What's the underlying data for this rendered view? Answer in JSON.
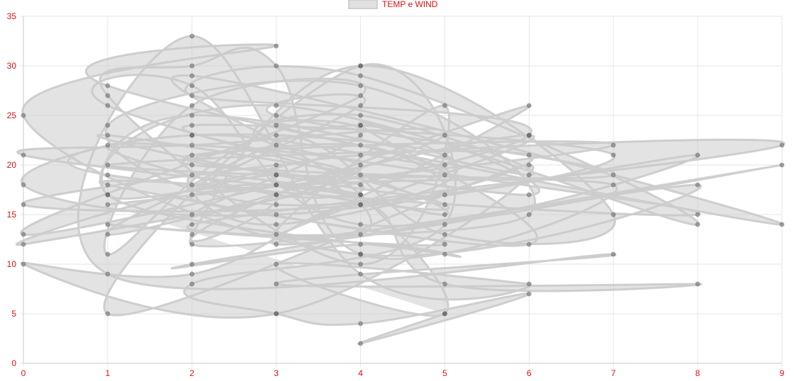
{
  "chart_data": {
    "type": "line",
    "title": "",
    "xlabel": "",
    "ylabel": "",
    "xlim": [
      0,
      9
    ],
    "ylim": [
      0,
      35
    ],
    "x_ticks": [
      "0",
      "1",
      "2",
      "3",
      "4",
      "5",
      "6",
      "7",
      "8",
      "9"
    ],
    "y_ticks": [
      "0",
      "5",
      "10",
      "15",
      "20",
      "25",
      "30",
      "35"
    ],
    "grid": true,
    "legend_position": "top-center",
    "series": [
      {
        "name": "TEMP e WIND",
        "fill": true,
        "line_tension": 0.4,
        "color": "#d9d9d9",
        "point_color": "#666666",
        "x": [
          1,
          7,
          2,
          4,
          3,
          1,
          4,
          2,
          4,
          3,
          5,
          1,
          6,
          3,
          2,
          4,
          0,
          2,
          5,
          1,
          4,
          3,
          7,
          2,
          4,
          5,
          3,
          1,
          6,
          4,
          2,
          3,
          0,
          4,
          5,
          2,
          1,
          8,
          3,
          4,
          6,
          2,
          1,
          3,
          5,
          4,
          2,
          7,
          3,
          1,
          4,
          6,
          2,
          9,
          4,
          3,
          5,
          1,
          2,
          4,
          8,
          3,
          0,
          2,
          5,
          4,
          6,
          1,
          3,
          2,
          4,
          7,
          5,
          3,
          1,
          2,
          4,
          0,
          6,
          3,
          9,
          2,
          4,
          5,
          1,
          3,
          8,
          4,
          2,
          6,
          0,
          3,
          4,
          1,
          5,
          2,
          7,
          4,
          3,
          2,
          1,
          4,
          5,
          3,
          6,
          2,
          8,
          4,
          0,
          3,
          1,
          9,
          2,
          4,
          5,
          3,
          6,
          4,
          2,
          1,
          7,
          3,
          8,
          5,
          4,
          2,
          0,
          3,
          6,
          1,
          4,
          5,
          2,
          3,
          4,
          6,
          4,
          5
        ],
        "y": [
          16,
          22,
          21,
          18,
          17,
          22,
          20,
          15,
          23,
          24,
          19,
          20,
          21,
          14,
          19,
          17,
          21,
          22,
          23,
          13,
          26,
          25,
          19,
          20,
          22,
          17,
          19,
          23,
          17,
          24,
          18,
          20,
          16,
          16,
          21,
          23,
          19,
          15,
          22,
          25,
          19,
          25,
          17,
          18,
          15,
          19,
          24,
          21,
          16,
          24,
          28,
          15,
          14,
          22,
          21,
          18,
          16,
          26,
          28,
          14,
          21,
          15,
          18,
          23,
          20,
          24,
          12,
          18,
          17,
          13,
          30,
          15,
          13,
          23,
          11,
          26,
          27,
          13,
          23,
          12,
          20,
          10,
          12,
          11,
          17,
          26,
          14,
          29,
          27,
          23,
          12,
          19,
          13,
          14,
          12,
          17,
          18,
          11,
          30,
          30,
          27,
          10,
          26,
          13,
          26,
          12,
          18,
          11,
          25,
          32,
          28,
          14,
          29,
          17,
          5,
          10,
          8,
          9,
          33,
          9,
          11,
          8,
          8,
          8,
          16,
          9,
          10,
          5,
          20,
          5,
          30,
          14,
          8,
          5,
          4,
          7,
          2,
          5
        ]
      }
    ]
  }
}
